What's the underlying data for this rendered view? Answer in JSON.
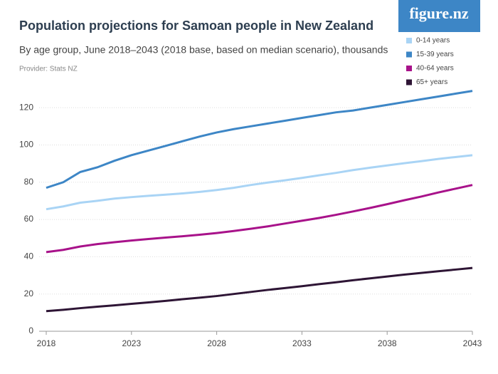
{
  "logo": "figure.nz",
  "chart_data": {
    "type": "line",
    "title": "Population projections for Samoan people in New Zealand",
    "subtitle": "By age group, June 2018–2043 (2018 base, based on median scenario), thousands",
    "source": "Provider: Stats NZ",
    "x": [
      2018,
      2019,
      2020,
      2021,
      2022,
      2023,
      2024,
      2025,
      2026,
      2027,
      2028,
      2029,
      2030,
      2031,
      2032,
      2033,
      2034,
      2035,
      2036,
      2037,
      2038,
      2039,
      2040,
      2041,
      2042,
      2043
    ],
    "xlim": [
      2018,
      2043
    ],
    "xticks": [
      2018,
      2023,
      2028,
      2033,
      2038,
      2043
    ],
    "ylim": [
      0,
      130
    ],
    "yticks": [
      0,
      20,
      40,
      60,
      80,
      100,
      120
    ],
    "grid": true,
    "legend": "top-right",
    "series": [
      {
        "name": "0-14 years",
        "color": "#a9d4f5",
        "values": [
          65.5,
          67,
          69,
          70,
          71.2,
          72,
          72.7,
          73.3,
          74,
          74.8,
          75.8,
          77,
          78.5,
          79.8,
          81,
          82.3,
          83.7,
          85,
          86.5,
          87.8,
          89,
          90.2,
          91.3,
          92.5,
          93.5,
          94.5
        ]
      },
      {
        "name": "15-39 years",
        "color": "#3d86c6",
        "values": [
          77,
          80,
          85.5,
          88,
          91.5,
          94.5,
          97,
          99.5,
          102,
          104.5,
          106.7,
          108.5,
          110,
          111.5,
          113,
          114.5,
          116,
          117.5,
          118.5,
          120,
          121.5,
          123,
          124.5,
          126,
          127.5,
          129
        ]
      },
      {
        "name": "40-64 years",
        "color": "#a8128a",
        "values": [
          42.5,
          43.7,
          45.5,
          46.8,
          47.8,
          48.7,
          49.5,
          50.3,
          51,
          51.8,
          52.7,
          53.8,
          55,
          56.3,
          57.8,
          59.3,
          60.8,
          62.5,
          64.3,
          66.2,
          68.2,
          70.3,
          72.3,
          74.5,
          76.5,
          78.5
        ]
      },
      {
        "name": "65+ years",
        "color": "#2e1535",
        "values": [
          10.8,
          11.5,
          12.4,
          13.2,
          13.9,
          14.7,
          15.5,
          16.3,
          17.2,
          18,
          18.9,
          20,
          21.1,
          22.2,
          23.2,
          24.2,
          25.3,
          26.3,
          27.4,
          28.4,
          29.4,
          30.4,
          31.3,
          32.2,
          33.1,
          34
        ]
      }
    ]
  }
}
